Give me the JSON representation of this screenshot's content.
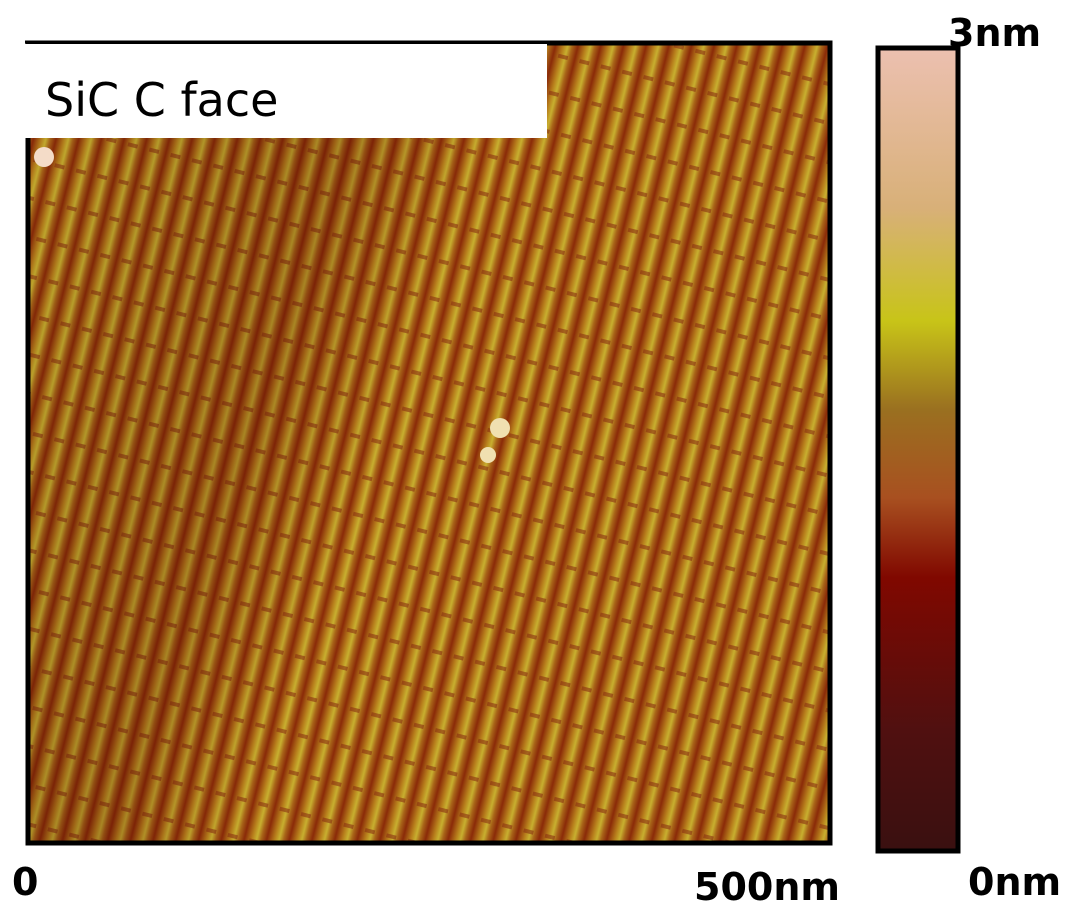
{
  "image": {
    "label": "SiC C face"
  },
  "x_scale": {
    "start": "0",
    "end": "500nm"
  },
  "color_scale": {
    "max": "3nm",
    "min": "0nm"
  }
}
